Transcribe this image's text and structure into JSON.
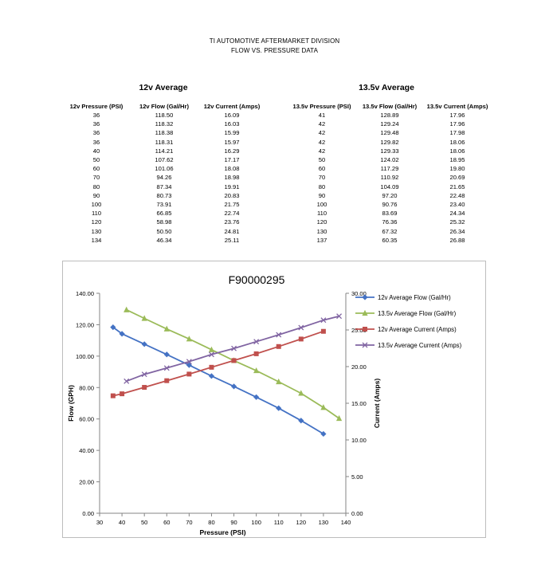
{
  "header": {
    "line1": "TI AUTOMOTIVE AFTERMARKET DIVISION",
    "line2": "FLOW  VS.  PRESSURE DATA"
  },
  "table12": {
    "title": "12v Average",
    "headers": [
      "12v Pressure (PSI)",
      "12v Flow (Gal/Hr)",
      "12v Current (Amps)"
    ],
    "rows": [
      [
        "36",
        "118.50",
        "16.09"
      ],
      [
        "36",
        "118.32",
        "16.03"
      ],
      [
        "36",
        "118.38",
        "15.99"
      ],
      [
        "36",
        "118.31",
        "15.97"
      ],
      [
        "40",
        "114.21",
        "16.29"
      ],
      [
        "50",
        "107.62",
        "17.17"
      ],
      [
        "60",
        "101.06",
        "18.08"
      ],
      [
        "70",
        "94.26",
        "18.98"
      ],
      [
        "80",
        "87.34",
        "19.91"
      ],
      [
        "90",
        "80.73",
        "20.83"
      ],
      [
        "100",
        "73.91",
        "21.75"
      ],
      [
        "110",
        "66.85",
        "22.74"
      ],
      [
        "120",
        "58.98",
        "23.76"
      ],
      [
        "130",
        "50.50",
        "24.81"
      ],
      [
        "134",
        "46.34",
        "25.11"
      ]
    ]
  },
  "table135": {
    "title": "13.5v Average",
    "headers": [
      "13.5v Pressure (PSI)",
      "13.5v Flow (Gal/Hr)",
      "13.5v Current (Amps)"
    ],
    "rows": [
      [
        "41",
        "128.89",
        "17.96"
      ],
      [
        "42",
        "129.24",
        "17.96"
      ],
      [
        "42",
        "129.48",
        "17.98"
      ],
      [
        "42",
        "129.82",
        "18.06"
      ],
      [
        "42",
        "129.33",
        "18.06"
      ],
      [
        "50",
        "124.02",
        "18.95"
      ],
      [
        "60",
        "117.29",
        "19.80"
      ],
      [
        "70",
        "110.92",
        "20.69"
      ],
      [
        "80",
        "104.09",
        "21.65"
      ],
      [
        "90",
        "97.20",
        "22.48"
      ],
      [
        "100",
        "90.76",
        "23.40"
      ],
      [
        "110",
        "83.69",
        "24.34"
      ],
      [
        "120",
        "76.36",
        "25.32"
      ],
      [
        "130",
        "67.32",
        "26.34"
      ],
      [
        "137",
        "60.35",
        "26.88"
      ]
    ]
  },
  "chart_data": {
    "type": "line",
    "title": "F90000295",
    "xlabel": "Pressure (PSI)",
    "ylabel": "Flow (GPH)",
    "y2label": "Current (Amps)",
    "xlim": [
      30,
      140
    ],
    "ylim": [
      0,
      140
    ],
    "y2lim": [
      0,
      30
    ],
    "xticks": [
      "30",
      "40",
      "50",
      "60",
      "70",
      "80",
      "90",
      "100",
      "110",
      "120",
      "130",
      "140"
    ],
    "yticks": [
      "0.00",
      "20.00",
      "40.00",
      "60.00",
      "80.00",
      "100.00",
      "120.00",
      "140.00"
    ],
    "y2ticks": [
      "0.00",
      "5.00",
      "10.00",
      "15.00",
      "20.00",
      "25.00",
      "30.00"
    ],
    "legend_position": "right",
    "grid": false,
    "series": [
      {
        "name": "12v Average Flow (Gal/Hr)",
        "axis": "left",
        "color": "#4472c4",
        "marker": "diamond",
        "x": [
          36,
          40,
          50,
          60,
          70,
          80,
          90,
          100,
          110,
          120,
          130
        ],
        "y": [
          118.38,
          114.21,
          107.62,
          101.06,
          94.26,
          87.34,
          80.73,
          73.91,
          66.85,
          58.98,
          50.5
        ]
      },
      {
        "name": "13.5v Average Flow (Gal/Hr)",
        "axis": "left",
        "color": "#9bbb59",
        "marker": "triangle",
        "x": [
          42,
          50,
          60,
          70,
          80,
          90,
          100,
          110,
          120,
          130,
          137
        ],
        "y": [
          129.48,
          124.02,
          117.29,
          110.92,
          104.09,
          97.2,
          90.76,
          83.69,
          76.36,
          67.32,
          60.35
        ]
      },
      {
        "name": "12v Average Current (Amps)",
        "axis": "right",
        "color": "#c0504d",
        "marker": "square",
        "x": [
          36,
          40,
          50,
          60,
          70,
          80,
          90,
          100,
          110,
          120,
          130
        ],
        "y": [
          16.02,
          16.29,
          17.17,
          18.08,
          18.98,
          19.91,
          20.83,
          21.75,
          22.74,
          23.76,
          24.81
        ]
      },
      {
        "name": "13.5v Average Current (Amps)",
        "axis": "right",
        "color": "#8064a2",
        "marker": "x",
        "x": [
          42,
          50,
          60,
          70,
          80,
          90,
          100,
          110,
          120,
          130,
          137
        ],
        "y": [
          18.01,
          18.95,
          19.8,
          20.69,
          21.65,
          22.48,
          23.4,
          24.34,
          25.32,
          26.34,
          26.88
        ]
      }
    ]
  }
}
